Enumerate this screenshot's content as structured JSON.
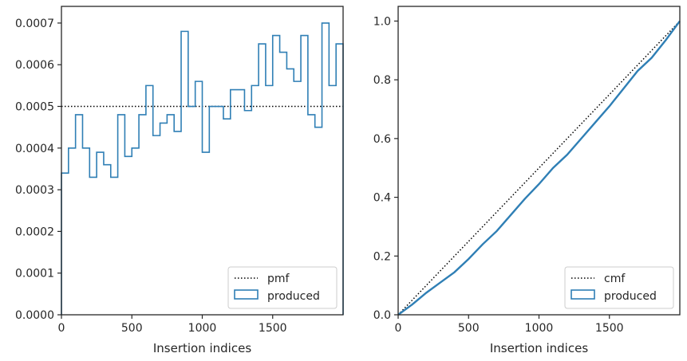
{
  "colors": {
    "series": "#2f7fb5",
    "reference": "#000000",
    "frame": "#262626",
    "legend_border": "#cccccc"
  },
  "chart_data": [
    {
      "type": "step-histogram",
      "xlabel": "Insertion indices",
      "ylabel": "",
      "xlim": [
        0,
        2000
      ],
      "ylim": [
        0,
        0.00074
      ],
      "xticks": [
        0,
        500,
        1000,
        1500
      ],
      "yticks": [
        0,
        0.0001,
        0.0002,
        0.0003,
        0.0004,
        0.0005,
        0.0006,
        0.0007
      ],
      "ytick_labels": [
        "0.0000",
        "0.0001",
        "0.0002",
        "0.0003",
        "0.0004",
        "0.0005",
        "0.0006",
        "0.0007"
      ],
      "bin_edges": [
        0,
        50,
        100,
        150,
        200,
        250,
        300,
        350,
        400,
        450,
        500,
        550,
        600,
        650,
        700,
        750,
        800,
        850,
        900,
        950,
        1000,
        1050,
        1100,
        1150,
        1200,
        1250,
        1300,
        1350,
        1400,
        1450,
        1500,
        1550,
        1600,
        1650,
        1700,
        1750,
        1800,
        1850,
        1900,
        1950,
        2000
      ],
      "values": [
        0.00034,
        0.0004,
        0.00048,
        0.0004,
        0.00033,
        0.00039,
        0.00036,
        0.00033,
        0.00048,
        0.00038,
        0.0004,
        0.00048,
        0.00055,
        0.00043,
        0.00046,
        0.00048,
        0.00044,
        0.00068,
        0.0005,
        0.00056,
        0.00039,
        0.0005,
        0.0005,
        0.00047,
        0.00054,
        0.00054,
        0.00049,
        0.00055,
        0.00065,
        0.00055,
        0.00067,
        0.00063,
        0.00059,
        0.00056,
        0.00067,
        0.00048,
        0.00045,
        0.0007,
        0.00055,
        0.00065
      ],
      "reference_line": {
        "name": "pmf",
        "y": 0.0005,
        "style": "dotted"
      },
      "series_name": "produced",
      "legend": {
        "position": "lower-right",
        "entries": [
          "pmf",
          "produced"
        ]
      }
    },
    {
      "type": "line",
      "xlabel": "Insertion indices",
      "ylabel": "",
      "xlim": [
        0,
        2000
      ],
      "ylim": [
        0,
        1.05
      ],
      "xticks": [
        0,
        500,
        1000,
        1500
      ],
      "yticks": [
        0.0,
        0.2,
        0.4,
        0.6,
        0.8,
        1.0
      ],
      "ytick_labels": [
        "0.0",
        "0.2",
        "0.4",
        "0.6",
        "0.8",
        "1.0"
      ],
      "x": [
        0,
        100,
        200,
        300,
        400,
        500,
        600,
        700,
        800,
        900,
        1000,
        1100,
        1200,
        1300,
        1400,
        1500,
        1600,
        1700,
        1800,
        1900,
        2000
      ],
      "values": [
        0.0,
        0.035,
        0.075,
        0.11,
        0.145,
        0.19,
        0.24,
        0.285,
        0.34,
        0.395,
        0.445,
        0.5,
        0.545,
        0.6,
        0.655,
        0.71,
        0.77,
        0.83,
        0.875,
        0.935,
        1.0
      ],
      "reference_line": {
        "name": "cmf",
        "from": [
          0,
          0
        ],
        "to": [
          2000,
          1.0
        ],
        "style": "dotted"
      },
      "series_name": "produced",
      "legend": {
        "position": "lower-right",
        "entries": [
          "cmf",
          "produced"
        ]
      }
    }
  ]
}
